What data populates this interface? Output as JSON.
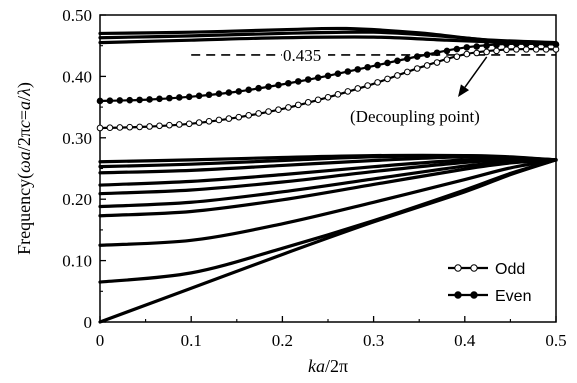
{
  "chart_data": {
    "type": "line",
    "title": "",
    "xlabel_italic": "ka",
    "xlabel_rest": "/2π",
    "ylabel_pre": "Frequency(",
    "ylabel_italic": "ωa",
    "ylabel_mid": "/2π",
    "ylabel_italic2": "c",
    "ylabel_eq": "=",
    "ylabel_italic3": "a",
    "ylabel_italic4": "λ",
    "ylabel_post": ")",
    "xlim": [
      0,
      0.5
    ],
    "ylim": [
      0,
      0.5
    ],
    "xticks": [
      "0",
      "0.1",
      "0.2",
      "0.3",
      "0.4",
      "0.5"
    ],
    "yticks": [
      "0",
      "0.10",
      "0.20",
      "0.30",
      "0.40",
      "0.50"
    ],
    "legend": {
      "position": "bottom-right",
      "entries": [
        "Odd",
        "Even"
      ]
    },
    "reference_line": {
      "y": 0.435,
      "label": "0.435"
    },
    "annotation": {
      "text": "(Decoupling point)",
      "x": 0.367,
      "y": 0.435
    },
    "series": [
      {
        "name": "Odd",
        "style": "open-circles",
        "x": [
          0,
          0.05,
          0.1,
          0.15,
          0.2,
          0.25,
          0.3,
          0.35,
          0.4,
          0.45,
          0.5
        ],
        "y": [
          0.316,
          0.318,
          0.323,
          0.333,
          0.347,
          0.366,
          0.388,
          0.414,
          0.436,
          0.444,
          0.444
        ]
      },
      {
        "name": "Even",
        "style": "filled-circles",
        "x": [
          0,
          0.05,
          0.1,
          0.15,
          0.2,
          0.25,
          0.3,
          0.35,
          0.4,
          0.45,
          0.5
        ],
        "y": [
          0.36,
          0.362,
          0.367,
          0.375,
          0.387,
          0.401,
          0.417,
          0.433,
          0.447,
          0.453,
          0.452
        ]
      },
      {
        "style": "line",
        "x": [
          0,
          0.1,
          0.2,
          0.27,
          0.35,
          0.42,
          0.5
        ],
        "y": [
          0.47,
          0.472,
          0.476,
          0.478,
          0.471,
          0.46,
          0.455
        ]
      },
      {
        "style": "line",
        "x": [
          0,
          0.1,
          0.2,
          0.3,
          0.38,
          0.45,
          0.5
        ],
        "y": [
          0.463,
          0.466,
          0.47,
          0.472,
          0.465,
          0.456,
          0.454
        ]
      },
      {
        "style": "line",
        "x": [
          0,
          0.1,
          0.2,
          0.3,
          0.38,
          0.45,
          0.5
        ],
        "y": [
          0.455,
          0.459,
          0.463,
          0.464,
          0.459,
          0.455,
          0.453
        ]
      },
      {
        "style": "line",
        "x": [
          0,
          0.1,
          0.2,
          0.3,
          0.4,
          0.45,
          0.5
        ],
        "y": [
          0.261,
          0.264,
          0.268,
          0.271,
          0.271,
          0.268,
          0.264
        ]
      },
      {
        "style": "line",
        "x": [
          0,
          0.1,
          0.2,
          0.3,
          0.4,
          0.45,
          0.5
        ],
        "y": [
          0.253,
          0.257,
          0.263,
          0.269,
          0.271,
          0.269,
          0.264
        ]
      },
      {
        "style": "line",
        "x": [
          0,
          0.1,
          0.2,
          0.3,
          0.4,
          0.45,
          0.5
        ],
        "y": [
          0.243,
          0.247,
          0.255,
          0.263,
          0.269,
          0.268,
          0.264
        ]
      },
      {
        "style": "line",
        "x": [
          0,
          0.1,
          0.2,
          0.3,
          0.4,
          0.45,
          0.5
        ],
        "y": [
          0.223,
          0.229,
          0.24,
          0.253,
          0.264,
          0.266,
          0.264
        ]
      },
      {
        "style": "line",
        "x": [
          0,
          0.1,
          0.2,
          0.3,
          0.4,
          0.45,
          0.5
        ],
        "y": [
          0.209,
          0.215,
          0.228,
          0.245,
          0.26,
          0.264,
          0.264
        ]
      },
      {
        "style": "line",
        "x": [
          0,
          0.1,
          0.2,
          0.3,
          0.4,
          0.45,
          0.5
        ],
        "y": [
          0.188,
          0.195,
          0.212,
          0.233,
          0.254,
          0.261,
          0.264
        ]
      },
      {
        "style": "line",
        "x": [
          0,
          0.1,
          0.2,
          0.3,
          0.4,
          0.45,
          0.5
        ],
        "y": [
          0.173,
          0.18,
          0.199,
          0.224,
          0.249,
          0.259,
          0.264
        ]
      },
      {
        "style": "line",
        "x": [
          0,
          0.1,
          0.2,
          0.3,
          0.4,
          0.45,
          0.5
        ],
        "y": [
          0.125,
          0.133,
          0.16,
          0.195,
          0.232,
          0.251,
          0.264
        ]
      },
      {
        "style": "line",
        "x": [
          0,
          0.1,
          0.2,
          0.3,
          0.4,
          0.45,
          0.5
        ],
        "y": [
          0.065,
          0.08,
          0.12,
          0.165,
          0.215,
          0.242,
          0.264
        ]
      },
      {
        "style": "line",
        "x": [
          0,
          0.1,
          0.2,
          0.3,
          0.4,
          0.45,
          0.5
        ],
        "y": [
          0,
          0.055,
          0.11,
          0.163,
          0.212,
          0.24,
          0.264
        ]
      }
    ]
  }
}
